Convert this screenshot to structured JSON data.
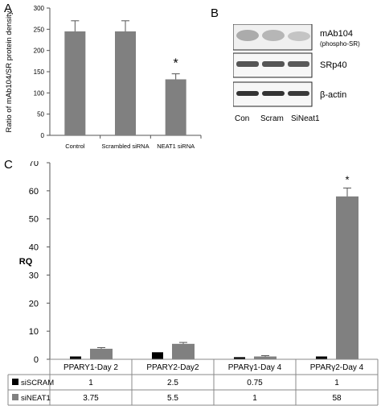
{
  "panel_a": {
    "letter": "A",
    "significance": "*",
    "chart_data": {
      "type": "bar",
      "categories": [
        "Control",
        "Scrambled siRNA",
        "NEAT1 siRNA"
      ],
      "values": [
        245,
        245,
        132
      ],
      "errors": [
        25,
        25,
        13
      ],
      "title": "",
      "xlabel": "",
      "ylabel": "Ratio of mAb104/SR protein density",
      "ylim": [
        0,
        300
      ],
      "yticks": [
        0,
        50,
        100,
        150,
        200,
        250,
        300
      ],
      "bar_color": "#808080",
      "grid": false
    }
  },
  "panel_b": {
    "letter": "B",
    "rows": [
      {
        "label": "mAb104",
        "sublabel": "(phospho-SR)"
      },
      {
        "label": "SRp40",
        "sublabel": ""
      },
      {
        "label": "β-actin",
        "sublabel": ""
      }
    ],
    "lanes": [
      "Con",
      "Scram",
      "SiNeat1"
    ]
  },
  "panel_c": {
    "letter": "C",
    "significance": "*",
    "chart_data": {
      "type": "bar",
      "categories": [
        "PPARY1-Day 2",
        "PPARY2-Day2",
        "PPARγ1-Day 4",
        "PPARγ2-Day 4"
      ],
      "series": [
        {
          "name": "siSCRAM",
          "values": [
            1,
            2.5,
            0.75,
            1
          ],
          "value_labels": [
            "1",
            "2.5",
            "0.75",
            "1"
          ],
          "color": "#000000"
        },
        {
          "name": "siNEAT1",
          "values": [
            3.75,
            5.5,
            1,
            58
          ],
          "value_labels": [
            "3.75",
            "5.5",
            "1",
            "58"
          ],
          "color": "#808080",
          "errors": [
            0.4,
            0.5,
            0.3,
            3
          ]
        }
      ],
      "title": "",
      "xlabel": "",
      "ylabel": "RQ",
      "ylim": [
        0,
        70
      ],
      "yticks": [
        0,
        10,
        20,
        30,
        40,
        50,
        60,
        70
      ],
      "grid": false,
      "legend": "table-below"
    }
  }
}
